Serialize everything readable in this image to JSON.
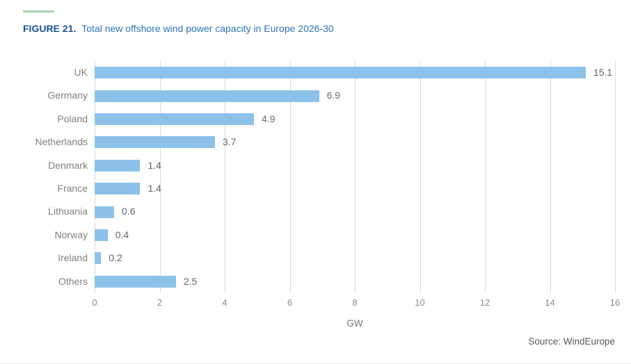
{
  "figure": {
    "label": "FIGURE 21.",
    "title": "Total new offshore wind power capacity in Europe 2026-30"
  },
  "source": "Source: WindEurope",
  "colors": {
    "bar": "#8CC2EA",
    "accent_line": "#A9D3AE",
    "figure_label": "#1B5393",
    "title": "#2E74B5",
    "grid": "#D9D9D9",
    "category_label": "#7F7F7F",
    "value_label": "#666666",
    "tick_label": "#8A8A8A",
    "axis_label": "#737373",
    "source_text": "#595959"
  },
  "chart_data": {
    "type": "bar",
    "orientation": "horizontal",
    "title": "Total new offshore wind power capacity in Europe 2026-30",
    "categories": [
      "UK",
      "Germany",
      "Poland",
      "Netherlands",
      "Denmark",
      "France",
      "Lithuania",
      "Norway",
      "Ireland",
      "Others"
    ],
    "values": [
      15.1,
      6.9,
      4.9,
      3.7,
      1.4,
      1.4,
      0.6,
      0.4,
      0.2,
      2.5
    ],
    "value_labels": [
      "15.1",
      "6.9",
      "4.9",
      "3.7",
      "1.4",
      "1.4",
      "0.6",
      "0.4",
      "0.2",
      "2.5"
    ],
    "xlabel": "GW",
    "ylabel": "",
    "xlim": [
      0,
      16
    ],
    "xticks": [
      0,
      2,
      4,
      6,
      8,
      10,
      12,
      14,
      16
    ],
    "grid": true,
    "legend": false
  }
}
